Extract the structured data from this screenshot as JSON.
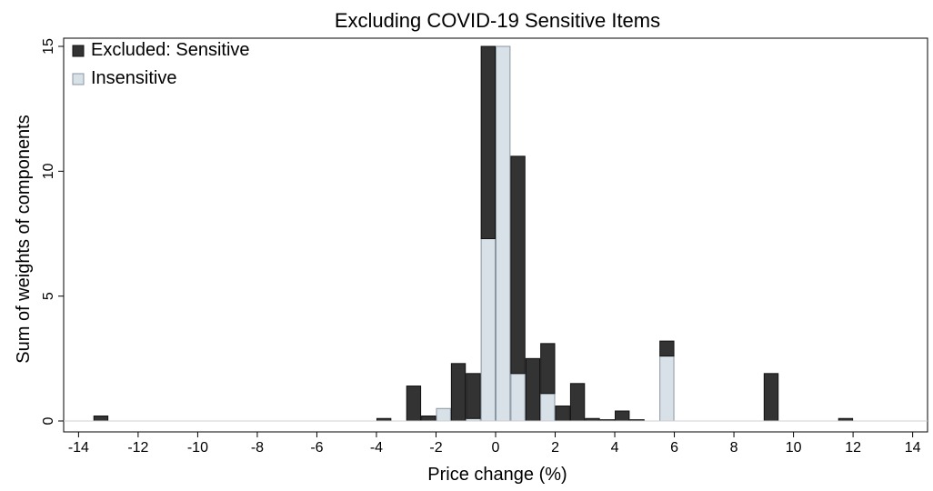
{
  "chart_data": {
    "type": "bar",
    "stacked": true,
    "title": "Excluding COVID-19 Sensitive Items",
    "xlabel": "Price change (%)",
    "ylabel": "Sum of weights of components",
    "xlim": [
      -14.5,
      14.5
    ],
    "ylim": [
      0,
      15
    ],
    "xticks": [
      -14,
      -12,
      -10,
      -8,
      -6,
      -4,
      -2,
      0,
      2,
      4,
      6,
      8,
      10,
      12,
      14
    ],
    "yticks": [
      0,
      5,
      10,
      15
    ],
    "bin_width": 0.5,
    "grid": false,
    "legend_position": "top-left",
    "series": [
      {
        "name": "Insensitive",
        "color": "#d9e1e8",
        "edge": "#8a96a0",
        "bins": [
          {
            "x0": -2.0,
            "value": 0.5
          },
          {
            "x0": -1.0,
            "value": 0.1
          },
          {
            "x0": -0.5,
            "value": 7.3
          },
          {
            "x0": 0.0,
            "value": 15.0
          },
          {
            "x0": 0.5,
            "value": 1.9
          },
          {
            "x0": 1.5,
            "value": 1.1
          },
          {
            "x0": 5.5,
            "value": 2.6
          }
        ]
      },
      {
        "name": "Excluded: Sensitive",
        "color": "#333333",
        "edge": "#111111",
        "bins": [
          {
            "x0": -13.5,
            "value": 0.2
          },
          {
            "x0": -4.0,
            "value": 0.1
          },
          {
            "x0": -3.0,
            "value": 1.4
          },
          {
            "x0": -2.5,
            "value": 0.2
          },
          {
            "x0": -1.5,
            "value": 2.3
          },
          {
            "x0": -1.0,
            "value": 1.8
          },
          {
            "x0": -0.5,
            "value": 7.7
          },
          {
            "x0": 0.5,
            "value": 8.7
          },
          {
            "x0": 1.0,
            "value": 2.5
          },
          {
            "x0": 1.5,
            "value": 2.0
          },
          {
            "x0": 2.0,
            "value": 0.6
          },
          {
            "x0": 2.5,
            "value": 1.5
          },
          {
            "x0": 3.0,
            "value": 0.1
          },
          {
            "x0": 3.5,
            "value": 0.05
          },
          {
            "x0": 4.0,
            "value": 0.4
          },
          {
            "x0": 4.5,
            "value": 0.05
          },
          {
            "x0": 5.5,
            "value": 0.6
          },
          {
            "x0": 9.0,
            "value": 1.9
          },
          {
            "x0": 11.5,
            "value": 0.1
          }
        ]
      }
    ],
    "legend": [
      {
        "name": "Excluded: Sensitive",
        "color": "#333333"
      },
      {
        "name": "Insensitive",
        "color": "#d9e1e8"
      }
    ]
  }
}
